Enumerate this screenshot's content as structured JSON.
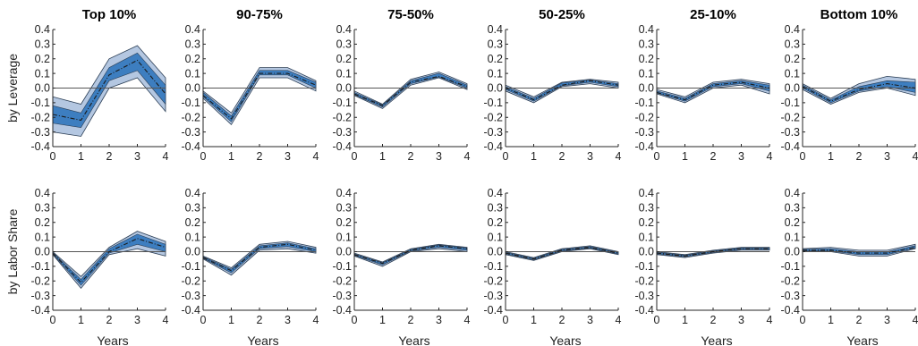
{
  "colors": {
    "outer_band": "#b4c7e1",
    "inner_band": "#3d7ec0",
    "median_line": "#1a1a1a",
    "band_edge": "#2b3e55",
    "zero_line": "#555555",
    "axis": "#262626"
  },
  "chart_data": {
    "type": "area",
    "grid": false,
    "x": [
      0,
      1,
      2,
      3,
      4
    ],
    "xticks": [
      "0",
      "1",
      "2",
      "3",
      "4"
    ],
    "yticks": [
      "0.4",
      "0.3",
      "0.2",
      "0.1",
      "0.0",
      "-0.1",
      "-0.2",
      "-0.3",
      "-0.4"
    ],
    "ylim": [
      -0.4,
      0.4
    ],
    "xlim": [
      0,
      4
    ],
    "xlabel": "Years",
    "columns": [
      "Top 10%",
      "90-75%",
      "75-50%",
      "50-25%",
      "25-10%",
      "Bottom 10%"
    ],
    "rows": [
      {
        "ylabel": "by Leverage",
        "panels": [
          {
            "median": [
              -0.18,
              -0.22,
              0.09,
              0.19,
              -0.04
            ],
            "outer_lo": [
              -0.3,
              -0.33,
              0.0,
              0.07,
              -0.16
            ],
            "outer_hi": [
              -0.06,
              -0.11,
              0.2,
              0.29,
              0.07
            ],
            "inner_lo": [
              -0.24,
              -0.27,
              0.05,
              0.12,
              -0.11
            ],
            "inner_hi": [
              -0.12,
              -0.17,
              0.14,
              0.24,
              0.02
            ]
          },
          {
            "median": [
              -0.05,
              -0.21,
              0.1,
              0.1,
              0.02
            ],
            "outer_lo": [
              -0.07,
              -0.25,
              0.07,
              0.07,
              -0.02
            ],
            "outer_hi": [
              -0.02,
              -0.17,
              0.14,
              0.14,
              0.05
            ],
            "inner_lo": [
              -0.06,
              -0.23,
              0.09,
              0.09,
              0.0
            ],
            "inner_hi": [
              -0.03,
              -0.19,
              0.12,
              0.12,
              0.04
            ]
          },
          {
            "median": [
              -0.04,
              -0.12,
              0.04,
              0.08,
              0.01
            ],
            "outer_lo": [
              -0.05,
              -0.14,
              0.02,
              0.07,
              -0.01
            ],
            "outer_hi": [
              -0.02,
              -0.11,
              0.06,
              0.11,
              0.03
            ],
            "inner_lo": [
              -0.045,
              -0.13,
              0.03,
              0.075,
              0.0
            ],
            "inner_hi": [
              -0.03,
              -0.115,
              0.05,
              0.1,
              0.02
            ]
          },
          {
            "median": [
              0.0,
              -0.08,
              0.02,
              0.05,
              0.02
            ],
            "outer_lo": [
              -0.02,
              -0.1,
              0.01,
              0.03,
              0.0
            ],
            "outer_hi": [
              0.02,
              -0.06,
              0.04,
              0.06,
              0.04
            ],
            "inner_lo": [
              -0.01,
              -0.09,
              0.015,
              0.04,
              0.01
            ],
            "inner_hi": [
              0.01,
              -0.07,
              0.035,
              0.055,
              0.03
            ]
          },
          {
            "median": [
              -0.03,
              -0.08,
              0.02,
              0.04,
              0.0
            ],
            "outer_lo": [
              -0.04,
              -0.1,
              0.0,
              0.02,
              -0.04
            ],
            "outer_hi": [
              -0.01,
              -0.06,
              0.04,
              0.06,
              0.03
            ],
            "inner_lo": [
              -0.035,
              -0.09,
              0.01,
              0.03,
              -0.02
            ],
            "inner_hi": [
              -0.02,
              -0.07,
              0.03,
              0.05,
              0.02
            ]
          },
          {
            "median": [
              0.01,
              -0.09,
              -0.01,
              0.03,
              0.0
            ],
            "outer_lo": [
              -0.01,
              -0.11,
              -0.03,
              0.0,
              -0.05
            ],
            "outer_hi": [
              0.03,
              -0.07,
              0.03,
              0.08,
              0.06
            ],
            "inner_lo": [
              0.0,
              -0.1,
              -0.02,
              0.01,
              -0.03
            ],
            "inner_hi": [
              0.02,
              -0.08,
              0.01,
              0.05,
              0.04
            ]
          }
        ]
      },
      {
        "ylabel": "by Labor Share",
        "panels": [
          {
            "median": [
              -0.01,
              -0.21,
              0.0,
              0.09,
              0.03
            ],
            "outer_lo": [
              -0.02,
              -0.25,
              -0.02,
              0.02,
              -0.03
            ],
            "outer_hi": [
              0.0,
              -0.17,
              0.03,
              0.14,
              0.07
            ],
            "inner_lo": [
              -0.015,
              -0.23,
              -0.01,
              0.05,
              0.0
            ],
            "inner_hi": [
              -0.005,
              -0.19,
              0.02,
              0.12,
              0.05
            ]
          },
          {
            "median": [
              -0.04,
              -0.13,
              0.03,
              0.05,
              0.01
            ],
            "outer_lo": [
              -0.05,
              -0.16,
              0.01,
              0.02,
              -0.01
            ],
            "outer_hi": [
              -0.03,
              -0.11,
              0.05,
              0.07,
              0.03
            ],
            "inner_lo": [
              -0.045,
              -0.145,
              0.02,
              0.035,
              0.0
            ],
            "inner_hi": [
              -0.035,
              -0.12,
              0.04,
              0.06,
              0.02
            ]
          },
          {
            "median": [
              -0.02,
              -0.08,
              0.01,
              0.04,
              0.02
            ],
            "outer_lo": [
              -0.03,
              -0.1,
              0.0,
              0.02,
              0.0
            ],
            "outer_hi": [
              -0.01,
              -0.07,
              0.02,
              0.05,
              0.03
            ],
            "inner_lo": [
              -0.025,
              -0.09,
              0.005,
              0.03,
              0.01
            ],
            "inner_hi": [
              -0.015,
              -0.075,
              0.015,
              0.045,
              0.025
            ]
          },
          {
            "median": [
              -0.01,
              -0.05,
              0.01,
              0.03,
              -0.01
            ],
            "outer_lo": [
              -0.02,
              -0.06,
              0.0,
              0.02,
              -0.02
            ],
            "outer_hi": [
              0.0,
              -0.04,
              0.02,
              0.04,
              0.0
            ],
            "inner_lo": [
              -0.015,
              -0.055,
              0.005,
              0.025,
              -0.015
            ],
            "inner_hi": [
              -0.005,
              -0.045,
              0.015,
              0.035,
              -0.005
            ]
          },
          {
            "median": [
              -0.01,
              -0.03,
              0.0,
              0.02,
              0.02
            ],
            "outer_lo": [
              -0.02,
              -0.04,
              -0.01,
              0.01,
              0.01
            ],
            "outer_hi": [
              0.0,
              -0.02,
              0.01,
              0.03,
              0.03
            ],
            "inner_lo": [
              -0.015,
              -0.035,
              -0.005,
              0.015,
              0.015
            ],
            "inner_hi": [
              -0.005,
              -0.025,
              0.005,
              0.025,
              0.025
            ]
          },
          {
            "median": [
              0.01,
              0.01,
              -0.01,
              -0.01,
              0.03
            ],
            "outer_lo": [
              0.0,
              0.0,
              -0.03,
              -0.03,
              0.02
            ],
            "outer_hi": [
              0.02,
              0.03,
              0.01,
              0.01,
              0.05
            ],
            "inner_lo": [
              0.005,
              0.005,
              -0.02,
              -0.02,
              0.025
            ],
            "inner_hi": [
              0.015,
              0.02,
              0.0,
              0.0,
              0.04
            ]
          }
        ]
      }
    ]
  }
}
